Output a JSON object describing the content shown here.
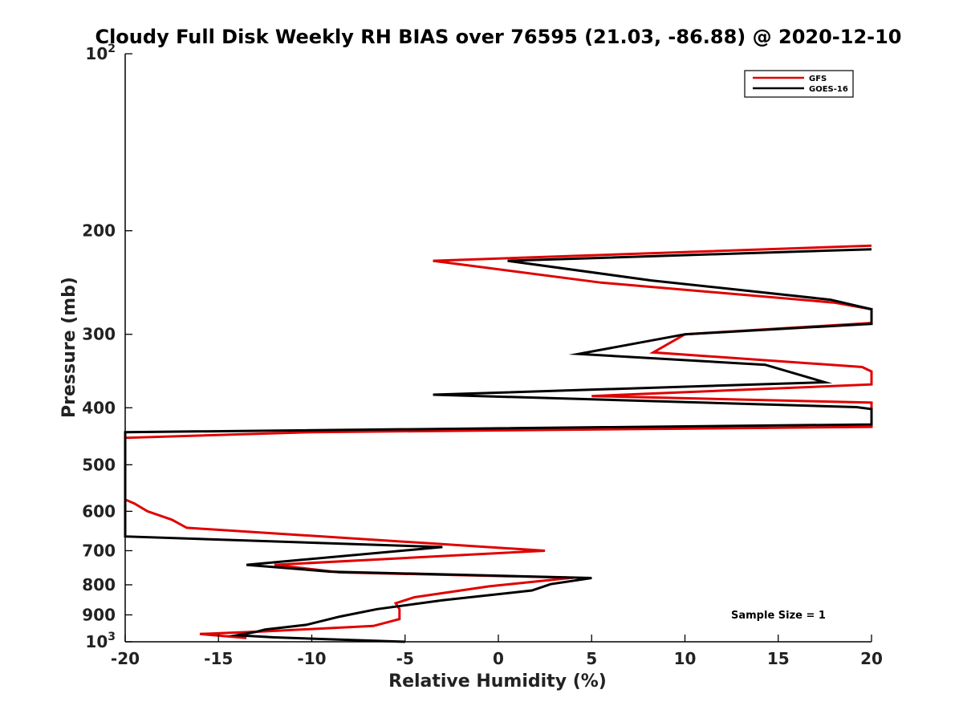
{
  "chart_data": {
    "type": "line",
    "title": "Cloudy Full Disk Weekly RH BIAS over 76595 (21.03, -86.88) @ 2020-12-10",
    "xlabel": "Relative Humidity (%)",
    "ylabel": "Pressure (mb)",
    "xlim": [
      -20,
      20
    ],
    "ylim": [
      100,
      1000
    ],
    "yscale": "log",
    "y_reversed": true,
    "x_ticks": [
      "-20",
      "-15",
      "-10",
      "-5",
      "0",
      "5",
      "10",
      "15",
      "20"
    ],
    "x_tick_values": [
      -20,
      -15,
      -10,
      -5,
      0,
      5,
      10,
      15,
      20
    ],
    "y_tick_values": [
      100,
      200,
      300,
      400,
      500,
      600,
      700,
      800,
      900,
      1000
    ],
    "y_ticks": [
      "10",
      "200",
      "300",
      "400",
      "500",
      "600",
      "700",
      "800",
      "900",
      "10"
    ],
    "y_tick_exponents": [
      "2",
      "",
      "",
      "",
      "",
      "",
      "",
      "",
      "",
      "3"
    ],
    "legend_position": "top-right",
    "annotation": "Sample Size = 1",
    "series": [
      {
        "name": "GFS",
        "color": "#e00000",
        "points": [
          [
            20,
            212
          ],
          [
            -3.5,
            225
          ],
          [
            5.5,
            245
          ],
          [
            18,
            265
          ],
          [
            20,
            272
          ],
          [
            20,
            287
          ],
          [
            10,
            300
          ],
          [
            8.3,
            322
          ],
          [
            19.5,
            341
          ],
          [
            20,
            347
          ],
          [
            20,
            365
          ],
          [
            5,
            382
          ],
          [
            20,
            392
          ],
          [
            20,
            431
          ],
          [
            -10,
            440
          ],
          [
            -20,
            450
          ],
          [
            -20,
            573
          ],
          [
            -19.5,
            582
          ],
          [
            -18.8,
            600
          ],
          [
            -17.5,
            620
          ],
          [
            -16.7,
            640
          ],
          [
            2.5,
            700
          ],
          [
            -12,
            740
          ],
          [
            -8.5,
            762
          ],
          [
            4,
            778
          ],
          [
            -0.5,
            805
          ],
          [
            -4.5,
            840
          ],
          [
            -5.5,
            860
          ],
          [
            -5.3,
            880
          ],
          [
            -5.3,
            915
          ],
          [
            -6.7,
            940
          ],
          [
            -12.5,
            960
          ],
          [
            -16,
            970
          ],
          [
            -13.5,
            985
          ]
        ]
      },
      {
        "name": "GOES-16",
        "color": "#000000",
        "points": [
          [
            20,
            215
          ],
          [
            0.5,
            225
          ],
          [
            8.2,
            243
          ],
          [
            17.8,
            262
          ],
          [
            20,
            272
          ],
          [
            20,
            288
          ],
          [
            10,
            300
          ],
          [
            4.3,
            324
          ],
          [
            14.3,
            338
          ],
          [
            17.5,
            362
          ],
          [
            -3.5,
            380
          ],
          [
            19.2,
            399
          ],
          [
            20,
            402
          ],
          [
            20,
            427
          ],
          [
            -20,
            440
          ],
          [
            -20,
            662
          ],
          [
            -3,
            690
          ],
          [
            -13.5,
            740
          ],
          [
            -9,
            760
          ],
          [
            5,
            779
          ],
          [
            2.8,
            798
          ],
          [
            1.8,
            818
          ],
          [
            -3,
            850
          ],
          [
            -6.5,
            880
          ],
          [
            -8.5,
            906
          ],
          [
            -10.3,
            936
          ],
          [
            -12.5,
            953
          ],
          [
            -13,
            962
          ],
          [
            -14,
            975
          ],
          [
            -12,
            983
          ],
          [
            -5,
            1000
          ]
        ]
      }
    ]
  }
}
